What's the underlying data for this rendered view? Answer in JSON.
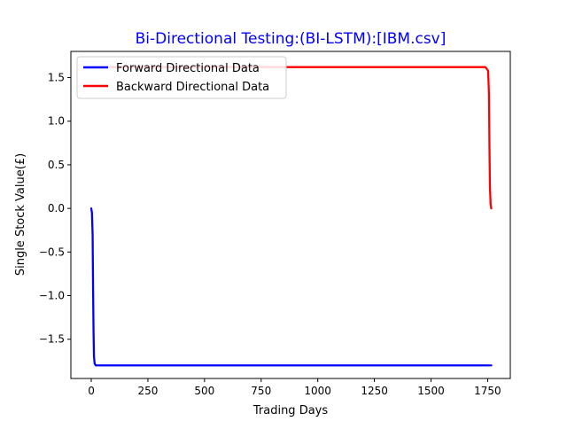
{
  "chart_data": {
    "type": "line",
    "title": "Bi-Directional Testing:(BI-LSTM):[IBM.csv]",
    "title_color": "#0000ff",
    "xlabel": "Trading Days",
    "ylabel": "Single Stock Value(£)",
    "xlim": [
      -90,
      1850
    ],
    "ylim": [
      -1.95,
      1.8
    ],
    "xticks": [
      0,
      250,
      500,
      750,
      1000,
      1250,
      1500,
      1750
    ],
    "xtick_labels": [
      "0",
      "250",
      "500",
      "750",
      "1000",
      "1250",
      "1500",
      "1750"
    ],
    "yticks": [
      -1.5,
      -1.0,
      -0.5,
      0.0,
      0.5,
      1.0,
      1.5
    ],
    "ytick_labels": [
      "−1.5",
      "−1.0",
      "−0.5",
      "0.0",
      "0.5",
      "1.0",
      "1.5"
    ],
    "grid": false,
    "legend": {
      "placement": "upper-left"
    },
    "series": [
      {
        "name": "Forward Directional Data",
        "color": "#0000ff",
        "x": [
          0,
          3,
          6,
          8,
          10,
          12,
          15,
          20,
          30,
          100,
          500,
          1000,
          1500,
          1766
        ],
        "y": [
          0.0,
          -0.05,
          -0.3,
          -0.9,
          -1.4,
          -1.7,
          -1.78,
          -1.8,
          -1.8,
          -1.8,
          -1.8,
          -1.8,
          -1.8,
          -1.8
        ]
      },
      {
        "name": "Backward Directional Data",
        "color": "#ff0000",
        "x": [
          0,
          100,
          500,
          1000,
          1500,
          1740,
          1752,
          1756,
          1758,
          1760,
          1763,
          1766
        ],
        "y": [
          1.62,
          1.62,
          1.62,
          1.62,
          1.62,
          1.62,
          1.58,
          1.3,
          0.7,
          0.25,
          0.05,
          0.0
        ]
      }
    ]
  }
}
